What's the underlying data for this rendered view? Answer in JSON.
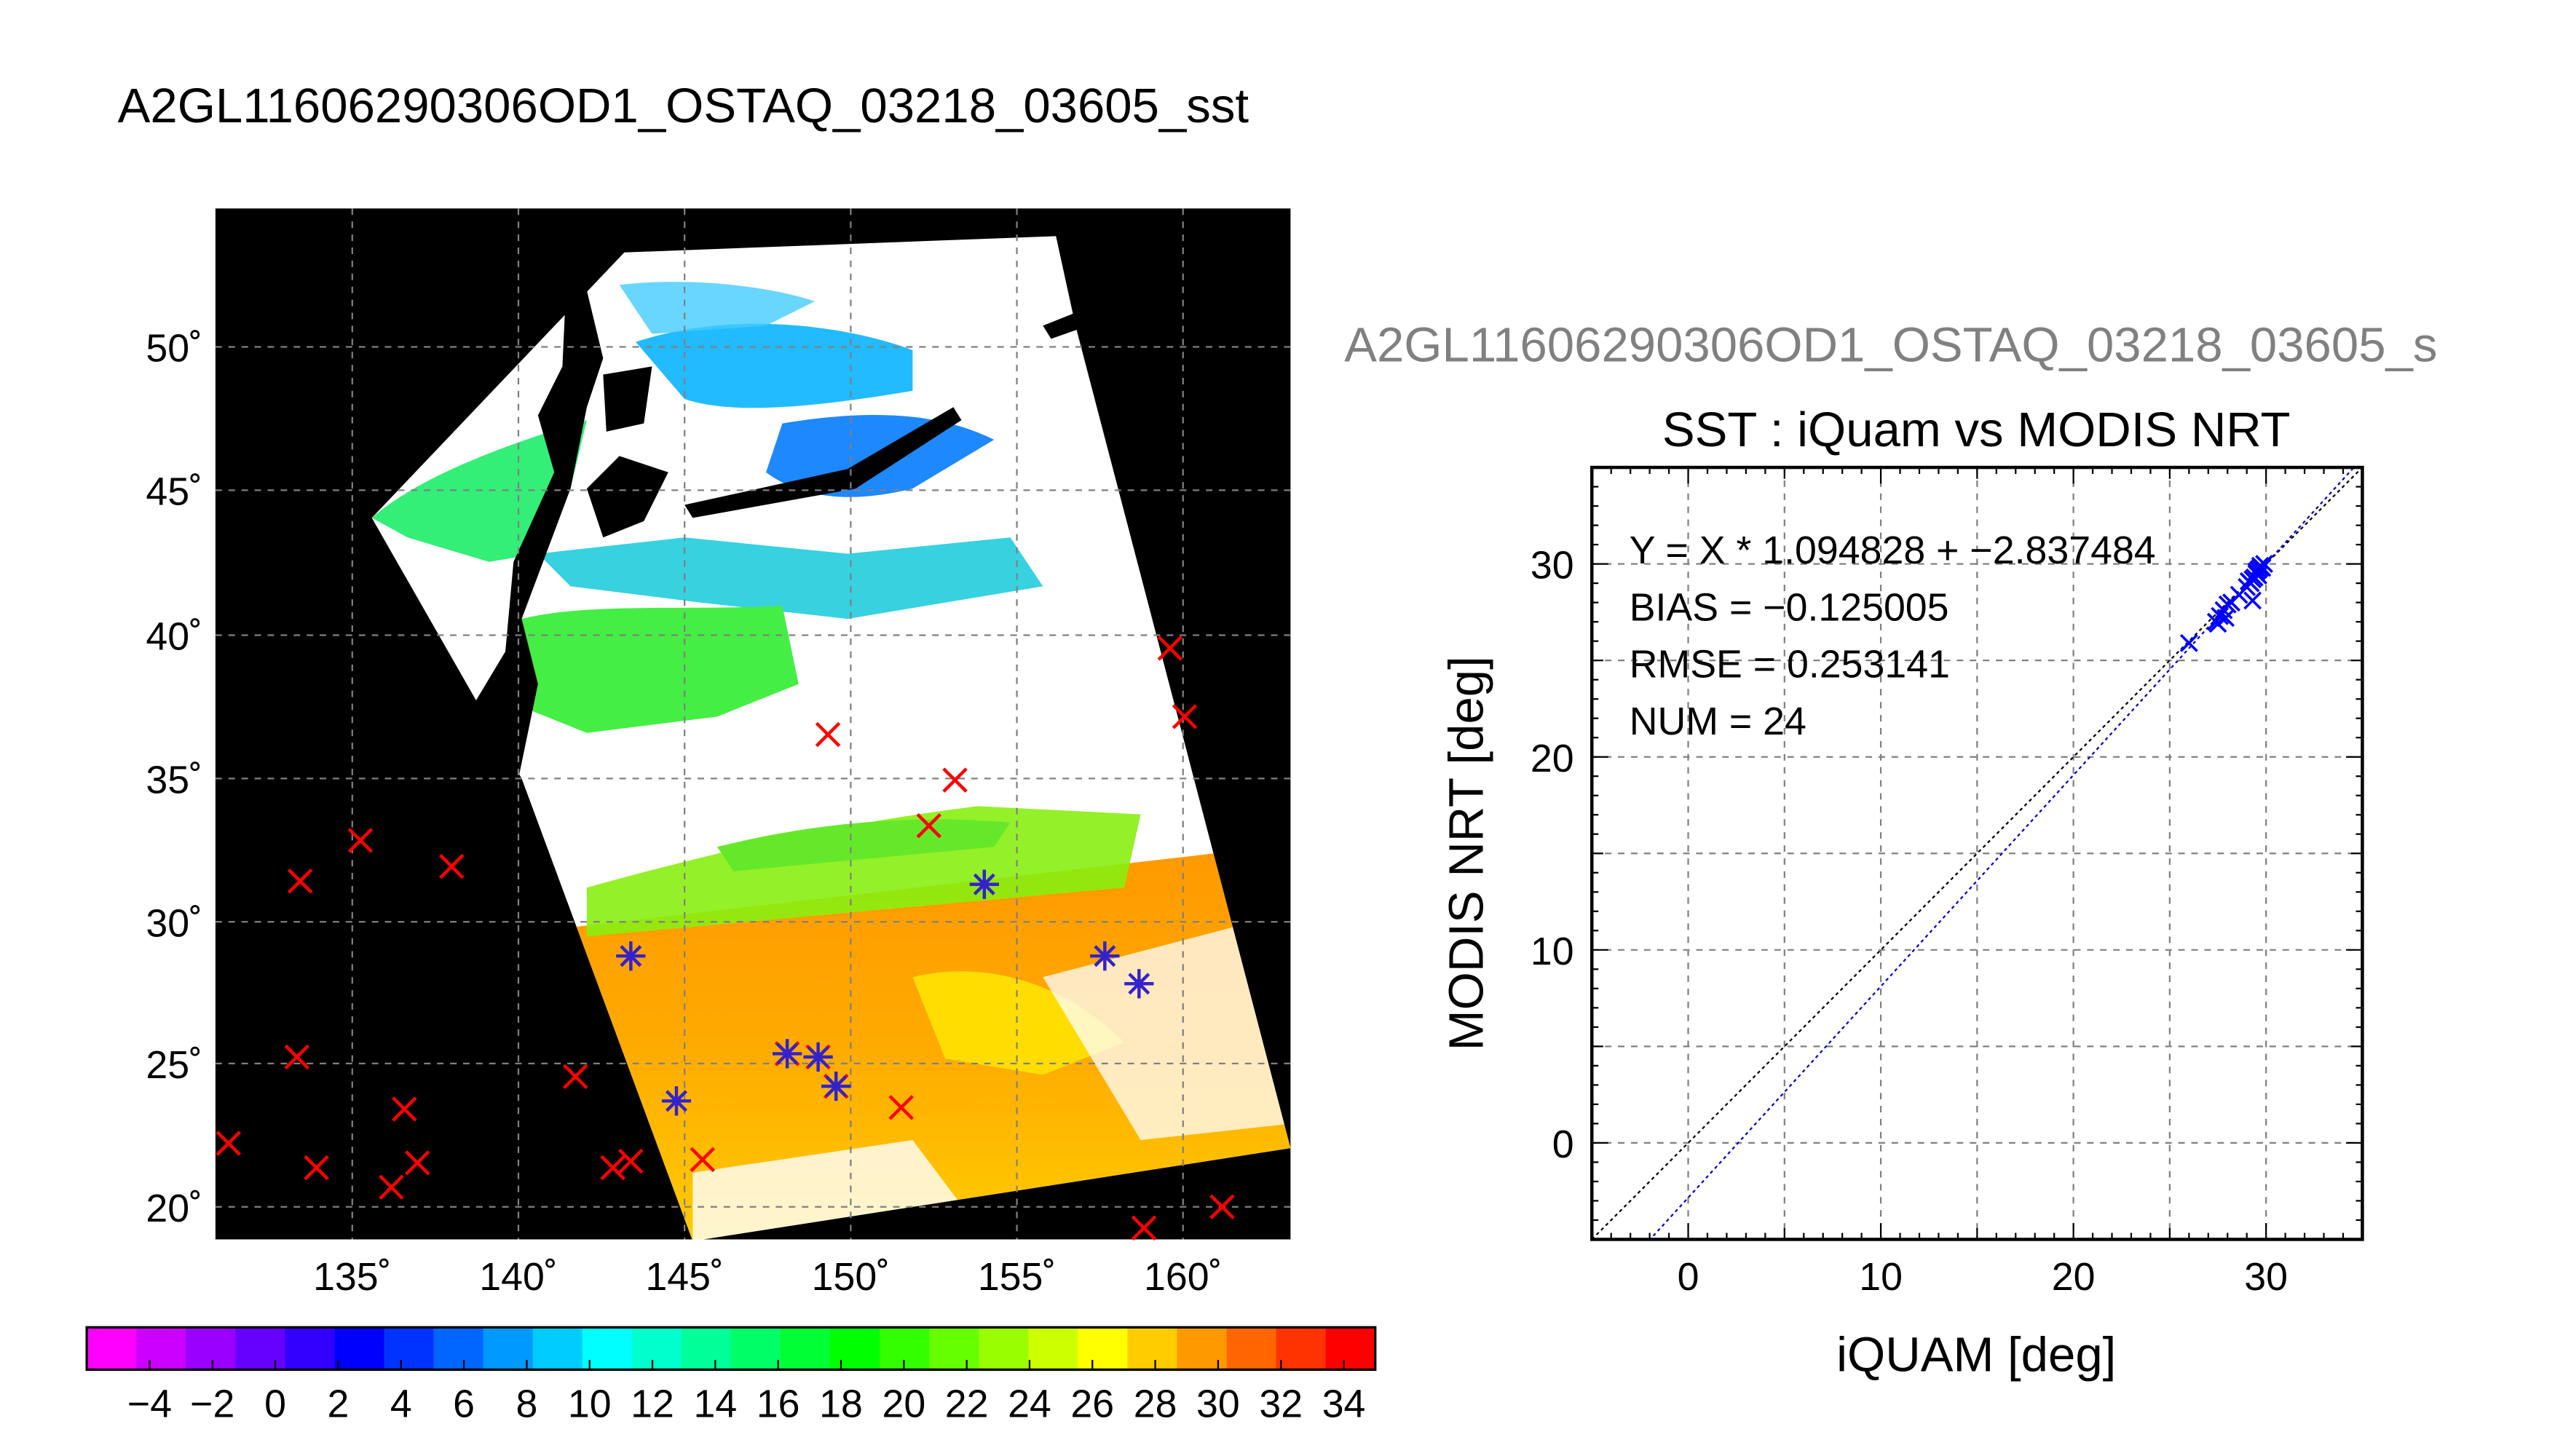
{
  "page_title": "A2GL11606290306OD1_OSTAQ_03218_03605_sst",
  "map_panel": {
    "lon_ticks": [
      "135˚",
      "140˚",
      "145˚",
      "150˚",
      "155˚",
      "160˚"
    ],
    "lat_ticks": [
      "50˚",
      "45˚",
      "40˚",
      "35˚",
      "30˚",
      "25˚",
      "20˚"
    ],
    "colorbar": {
      "labels": [
        "−4",
        "−2",
        "0",
        "2",
        "4",
        "6",
        "8",
        "10",
        "12",
        "14",
        "16",
        "18",
        "20",
        "22",
        "24",
        "26",
        "28",
        "30",
        "32",
        "34"
      ],
      "colors": [
        "#ff00ff",
        "#cc00ff",
        "#9900ff",
        "#6600ff",
        "#3300ff",
        "#0000ff",
        "#0033ff",
        "#0066ff",
        "#0099ff",
        "#00ccff",
        "#00ffff",
        "#00ffcc",
        "#00ff99",
        "#00ff66",
        "#00ff33",
        "#00ff00",
        "#33ff00",
        "#66ff00",
        "#99ff00",
        "#ccff00",
        "#ffff00",
        "#ffcc00",
        "#ff9900",
        "#ff6600",
        "#ff3300",
        "#ff0000"
      ]
    },
    "colors": {
      "space": "#000000",
      "cloud": "#ffffff",
      "iquam_marker": "#ff0000",
      "matchup_marker": "#3322cc"
    }
  },
  "scatter_panel": {
    "file_label": "A2GL11606290306OD1_OSTAQ_03218_03605_s",
    "stats": {
      "fit": "Y = X * 1.094828 + −2.837484",
      "bias": "BIAS = −0.125005",
      "rmse": "RMSE = 0.253141",
      "num": "NUM = 24"
    }
  },
  "chart_data": {
    "type": "scatter",
    "title": "SST : iQuam vs MODIS NRT",
    "xlabel": "iQUAM [deg]",
    "ylabel": "MODIS NRT [deg]",
    "xlim": [
      -5,
      35
    ],
    "ylim": [
      -5,
      35
    ],
    "xticks": [
      "0",
      "10",
      "20",
      "30"
    ],
    "yticks": [
      "0",
      "10",
      "20",
      "30"
    ],
    "grid": true,
    "fit": {
      "slope": 1.094828,
      "intercept": -2.837484
    },
    "x": [
      26.0,
      27.4,
      27.6,
      27.8,
      28.0,
      27.9,
      27.5,
      28.2,
      29.0,
      29.3,
      29.5,
      29.6,
      29.7,
      29.8,
      29.4,
      29.5,
      29.6,
      29.3,
      28.6,
      29.2,
      29.7,
      29.9,
      29.1,
      29.6
    ],
    "y": [
      25.9,
      27.0,
      27.3,
      27.6,
      27.9,
      27.2,
      26.9,
      28.0,
      28.8,
      29.2,
      29.5,
      29.7,
      29.9,
      29.8,
      29.3,
      29.6,
      29.4,
      28.1,
      28.4,
      29.0,
      29.8,
      30.0,
      29.1,
      29.7
    ],
    "colors": {
      "points": "#0000ff",
      "fit_line": "#0000cc",
      "identity_line": "#000000"
    }
  }
}
